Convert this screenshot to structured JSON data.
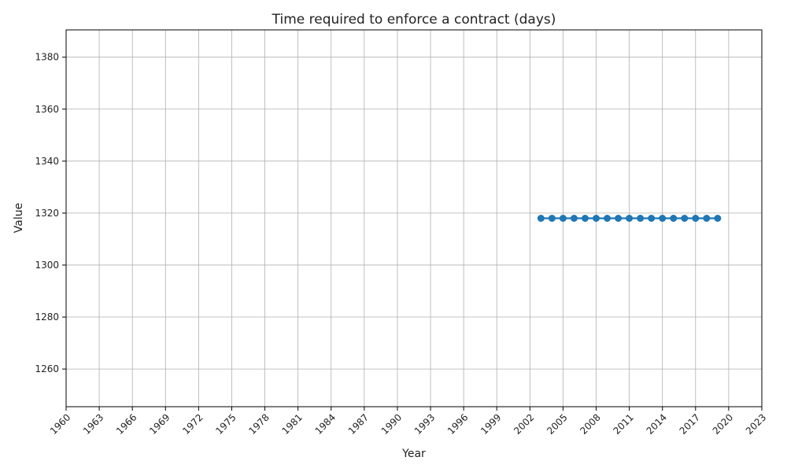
{
  "chart_data": {
    "type": "line",
    "title": "Time required to enforce a contract (days)",
    "xlabel": "Year",
    "ylabel": "Value",
    "xlim": [
      1960,
      2023
    ],
    "ylim": [
      1245.5,
      1390.5
    ],
    "x_ticks": [
      1960,
      1963,
      1966,
      1969,
      1972,
      1975,
      1978,
      1981,
      1984,
      1987,
      1990,
      1993,
      1996,
      1999,
      2002,
      2005,
      2008,
      2011,
      2014,
      2017,
      2020,
      2023
    ],
    "y_ticks": [
      1260,
      1280,
      1300,
      1320,
      1340,
      1360,
      1380
    ],
    "grid": true,
    "legend": "none",
    "x_tick_rotation": 45,
    "colors": {
      "series": "#1f77b4"
    },
    "series": [
      {
        "x": [
          2003,
          2004,
          2005,
          2006,
          2007,
          2008,
          2009,
          2010,
          2011,
          2012,
          2013,
          2014,
          2015,
          2016,
          2017,
          2018,
          2019
        ],
        "values": [
          1318,
          1318,
          1318,
          1318,
          1318,
          1318,
          1318,
          1318,
          1318,
          1318,
          1318,
          1318,
          1318,
          1318,
          1318,
          1318,
          1318
        ]
      }
    ]
  }
}
